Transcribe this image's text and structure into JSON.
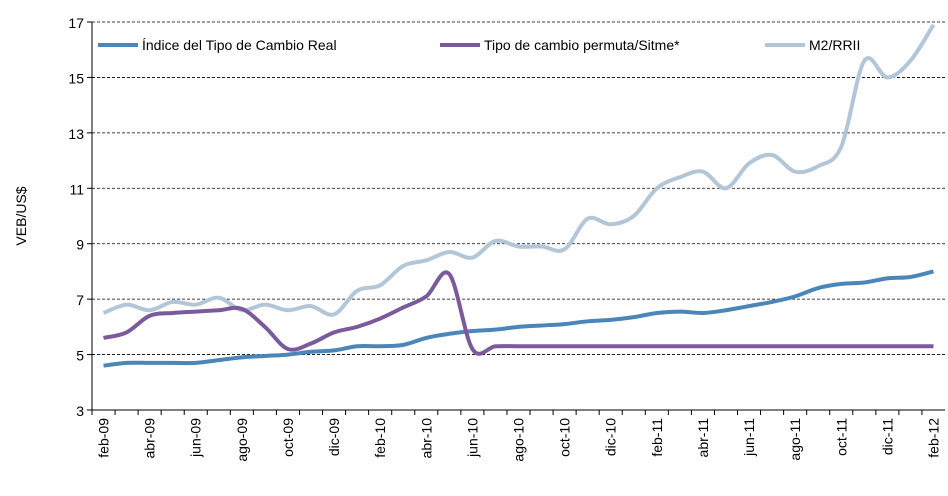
{
  "chart_data": {
    "type": "line",
    "ylabel": "VEB/US$",
    "categories": [
      "feb-09",
      null,
      "abr-09",
      null,
      "jun-09",
      null,
      "ago-09",
      null,
      "oct-09",
      null,
      "dic-09",
      null,
      "feb-10",
      null,
      "abr-10",
      null,
      "jun-10",
      null,
      "ago-10",
      null,
      "oct-10",
      null,
      "dic-10",
      null,
      "feb-11",
      null,
      "abr-11",
      null,
      "jun-11",
      null,
      "ago-11",
      null,
      "oct-11",
      null,
      "dic-11",
      null,
      "feb-12"
    ],
    "series": [
      {
        "name": "Índice del Tipo de Cambio Real",
        "color": "#4a86b8",
        "values": [
          4.6,
          4.7,
          4.7,
          4.7,
          4.7,
          4.8,
          4.9,
          4.95,
          5.0,
          5.1,
          5.15,
          5.3,
          5.3,
          5.35,
          5.6,
          5.75,
          5.85,
          5.9,
          6.0,
          6.05,
          6.1,
          6.2,
          6.25,
          6.35,
          6.5,
          6.55,
          6.5,
          6.6,
          6.75,
          6.9,
          7.1,
          7.4,
          7.55,
          7.6,
          7.75,
          7.8,
          8.0
        ]
      },
      {
        "name": "Tipo de cambio permuta/Sitme*",
        "color": "#7b5a9c",
        "values": [
          5.6,
          5.8,
          6.4,
          6.5,
          6.55,
          6.6,
          6.65,
          6.0,
          5.2,
          5.4,
          5.8,
          6.0,
          6.3,
          6.7,
          7.1,
          7.9,
          5.2,
          5.3,
          5.3,
          5.3,
          5.3,
          5.3,
          5.3,
          5.3,
          5.3,
          5.3,
          5.3,
          5.3,
          5.3,
          5.3,
          5.3,
          5.3,
          5.3,
          5.3,
          5.3,
          5.3,
          5.3
        ]
      },
      {
        "name": "M2/RRII",
        "color": "#b3c6d8",
        "values": [
          6.5,
          6.8,
          6.6,
          6.9,
          6.8,
          7.05,
          6.6,
          6.8,
          6.6,
          6.75,
          6.45,
          7.3,
          7.5,
          8.2,
          8.4,
          8.7,
          8.5,
          9.1,
          8.9,
          8.9,
          8.8,
          9.9,
          9.7,
          10.0,
          11.0,
          11.4,
          11.6,
          11.0,
          11.9,
          12.2,
          11.6,
          11.8,
          12.5,
          15.6,
          15.0,
          15.6,
          16.9
        ]
      }
    ],
    "ylim": [
      3,
      17
    ],
    "yticks": [
      3,
      5,
      7,
      9,
      11,
      13,
      15,
      17
    ],
    "grid": true
  }
}
